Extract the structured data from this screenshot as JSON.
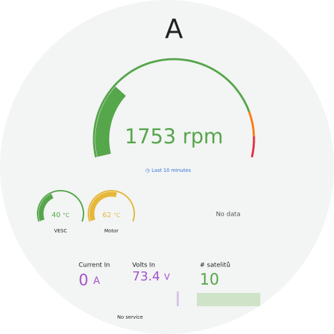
{
  "header": {
    "title": "A"
  },
  "main_gauge": {
    "value": "1753",
    "unit": "rpm",
    "time_range": "Last 10 minutes"
  },
  "small_gauges": [
    {
      "value": "40",
      "unit": "°C",
      "label": "VESC"
    },
    {
      "value": "62",
      "unit": "°C",
      "label": "Motor"
    }
  ],
  "empty_panel": {
    "text": "No data"
  },
  "stats": [
    {
      "label": "Current In",
      "value": "0",
      "unit": "A"
    },
    {
      "label": "Volts In",
      "value": "73.4",
      "unit": "V"
    },
    {
      "label": "# satelitů",
      "value": "10"
    }
  ],
  "footer": {
    "text": "No service"
  }
}
